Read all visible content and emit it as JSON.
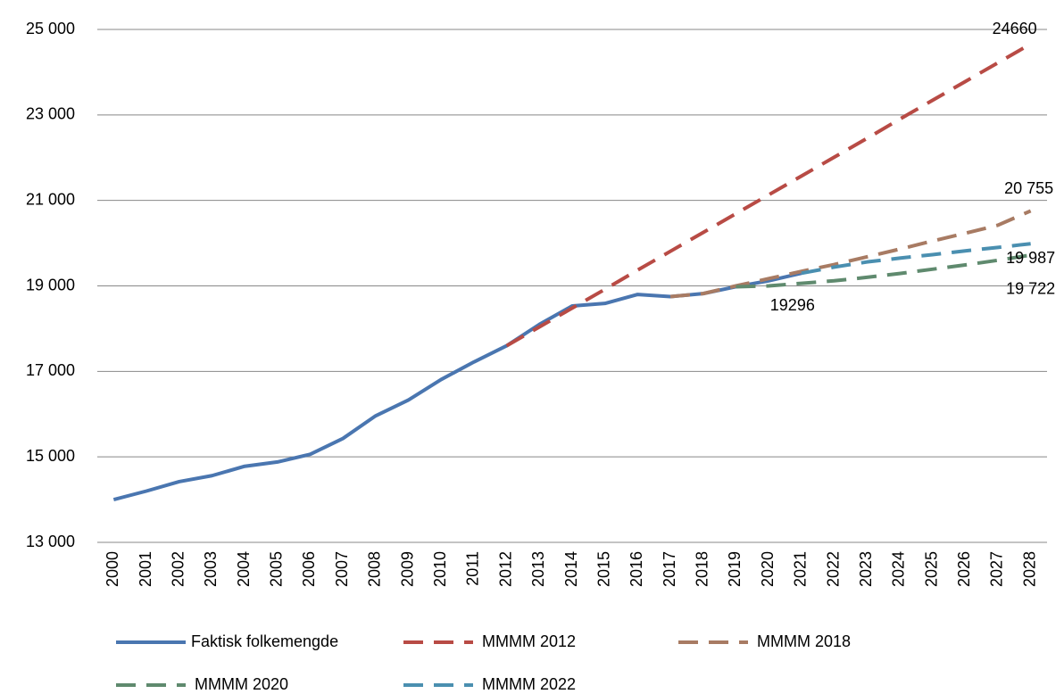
{
  "chart_data": {
    "type": "line",
    "categories": [
      "2000",
      "2001",
      "2002",
      "2003",
      "2004",
      "2005",
      "2006",
      "2007",
      "2008",
      "2009",
      "2010",
      "2011",
      "2012",
      "2013",
      "2014",
      "2015",
      "2016",
      "2017",
      "2018",
      "2019",
      "2020",
      "2021",
      "2022",
      "2023",
      "2024",
      "2025",
      "2026",
      "2027",
      "2028"
    ],
    "ylim": [
      13000,
      25000
    ],
    "yticks": [
      {
        "value": 13000,
        "label": "13 000"
      },
      {
        "value": 15000,
        "label": "15 000"
      },
      {
        "value": 17000,
        "label": "17 000"
      },
      {
        "value": 19000,
        "label": "19 000"
      },
      {
        "value": 21000,
        "label": "21 000"
      },
      {
        "value": 23000,
        "label": "23 000"
      },
      {
        "value": 25000,
        "label": "25 000"
      }
    ],
    "grid": true,
    "legend": "bottom",
    "series": [
      {
        "name": "Faktisk folkemengde",
        "color": "#4a76b0",
        "dashed": false,
        "values": [
          14000,
          14200,
          14420,
          14560,
          14780,
          14880,
          15060,
          15430,
          15960,
          16330,
          16810,
          17220,
          17600,
          18100,
          18530,
          18590,
          18800,
          18750,
          18820,
          18980,
          19120,
          19296,
          null,
          null,
          null,
          null,
          null,
          null,
          null
        ],
        "value_labels": [
          null,
          null,
          null,
          null,
          null,
          null,
          null,
          null,
          null,
          null,
          null,
          null,
          null,
          null,
          null,
          null,
          null,
          null,
          null,
          null,
          null,
          "19296",
          null,
          null,
          null,
          null,
          null,
          null,
          null
        ]
      },
      {
        "name": "MMMM 2012",
        "color": "#b84b45",
        "dashed": true,
        "values": [
          null,
          null,
          null,
          null,
          null,
          null,
          null,
          null,
          null,
          null,
          null,
          null,
          17600,
          18040,
          18480,
          18920,
          19370,
          19810,
          20250,
          20690,
          21130,
          21570,
          22010,
          22450,
          22900,
          23340,
          23780,
          24220,
          24660
        ],
        "value_labels": [
          null,
          null,
          null,
          null,
          null,
          null,
          null,
          null,
          null,
          null,
          null,
          null,
          null,
          null,
          null,
          null,
          null,
          null,
          null,
          null,
          null,
          null,
          null,
          null,
          null,
          null,
          null,
          null,
          "24660"
        ]
      },
      {
        "name": "MMMM 2018",
        "color": "#a87b63",
        "dashed": true,
        "values": [
          null,
          null,
          null,
          null,
          null,
          null,
          null,
          null,
          null,
          null,
          null,
          null,
          null,
          null,
          null,
          null,
          null,
          18750,
          18820,
          19000,
          19170,
          19340,
          19500,
          19680,
          19860,
          20050,
          20230,
          20420,
          20755
        ],
        "value_labels": [
          null,
          null,
          null,
          null,
          null,
          null,
          null,
          null,
          null,
          null,
          null,
          null,
          null,
          null,
          null,
          null,
          null,
          null,
          null,
          null,
          null,
          null,
          null,
          null,
          null,
          null,
          null,
          null,
          "20 755"
        ]
      },
      {
        "name": "MMMM 2020",
        "color": "#5f8a6e",
        "dashed": true,
        "values": [
          null,
          null,
          null,
          null,
          null,
          null,
          null,
          null,
          null,
          null,
          null,
          null,
          null,
          null,
          null,
          null,
          null,
          null,
          null,
          18980,
          19000,
          19060,
          19120,
          19200,
          19290,
          19390,
          19490,
          19600,
          19722
        ],
        "value_labels": [
          null,
          null,
          null,
          null,
          null,
          null,
          null,
          null,
          null,
          null,
          null,
          null,
          null,
          null,
          null,
          null,
          null,
          null,
          null,
          null,
          null,
          null,
          null,
          null,
          null,
          null,
          null,
          null,
          "19 722"
        ]
      },
      {
        "name": "MMMM 2022",
        "color": "#4a8fb0",
        "dashed": true,
        "values": [
          null,
          null,
          null,
          null,
          null,
          null,
          null,
          null,
          null,
          null,
          null,
          null,
          null,
          null,
          null,
          null,
          null,
          null,
          null,
          null,
          null,
          19296,
          19440,
          19560,
          19650,
          19730,
          19820,
          19900,
          19987
        ],
        "value_labels": [
          null,
          null,
          null,
          null,
          null,
          null,
          null,
          null,
          null,
          null,
          null,
          null,
          null,
          null,
          null,
          null,
          null,
          null,
          null,
          null,
          null,
          null,
          null,
          null,
          null,
          null,
          null,
          null,
          "19 987"
        ]
      }
    ]
  }
}
